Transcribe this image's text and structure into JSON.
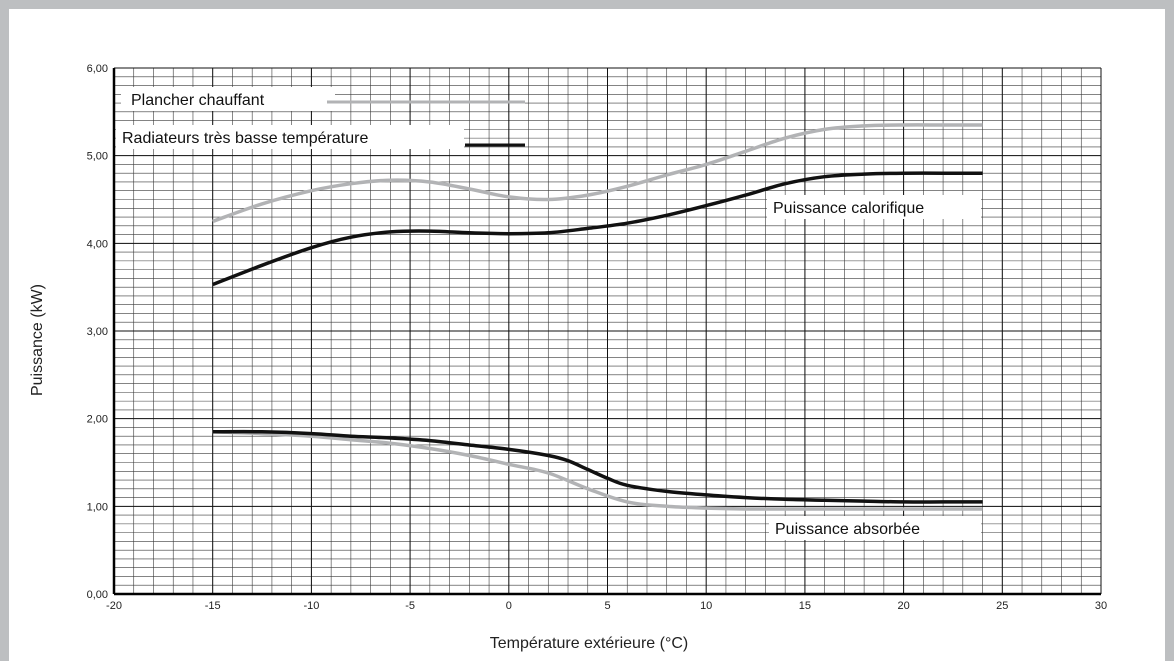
{
  "chart_data": {
    "type": "line",
    "xlabel": "Température extérieure (°C)",
    "ylabel": "Puissance (kW)",
    "xlim": [
      -20,
      30
    ],
    "ylim": [
      0,
      6
    ],
    "x_ticks": [
      -20,
      -15,
      -10,
      -5,
      0,
      5,
      10,
      15,
      20,
      25,
      30
    ],
    "y_ticks": [
      "0,00",
      "1,00",
      "2,00",
      "3,00",
      "4,00",
      "5,00",
      "6,00"
    ],
    "grid": true,
    "legend_placement": "top-left",
    "legend": [
      {
        "label": "Plancher chauffant",
        "color": "#b2b3b5"
      },
      {
        "label": "Radiateurs très basse température",
        "color": "#111111"
      }
    ],
    "annotations": [
      "Puissance calorifique",
      "Puissance absorbée"
    ],
    "series": [
      {
        "name": "Plancher chauffant",
        "group": "Puissance calorifique",
        "color": "#b2b3b5",
        "x": [
          -15,
          -12.5,
          -10,
          -8,
          -6,
          -4,
          -2,
          0,
          2,
          4,
          6,
          8,
          10,
          12,
          14,
          16,
          18,
          20,
          22,
          24
        ],
        "y": [
          4.25,
          4.45,
          4.6,
          4.68,
          4.72,
          4.7,
          4.62,
          4.53,
          4.5,
          4.55,
          4.65,
          4.78,
          4.9,
          5.05,
          5.2,
          5.3,
          5.34,
          5.35,
          5.35,
          5.35
        ]
      },
      {
        "name": "Radiateurs très basse température",
        "group": "Puissance calorifique",
        "color": "#111111",
        "x": [
          -15,
          -12.5,
          -10,
          -8,
          -6,
          -4,
          -2,
          0,
          2,
          4,
          6,
          8,
          10,
          12,
          14,
          16,
          18,
          20,
          22,
          24
        ],
        "y": [
          3.53,
          3.75,
          3.95,
          4.07,
          4.13,
          4.14,
          4.12,
          4.11,
          4.12,
          4.17,
          4.23,
          4.32,
          4.43,
          4.55,
          4.68,
          4.76,
          4.79,
          4.8,
          4.8,
          4.8
        ]
      },
      {
        "name": "Plancher chauffant",
        "group": "Puissance absorbée",
        "color": "#b2b3b5",
        "x": [
          -15,
          -12.5,
          -10,
          -8,
          -6,
          -4,
          -2,
          0,
          2,
          4,
          6,
          8,
          10,
          12,
          14,
          16,
          18,
          20,
          22,
          24
        ],
        "y": [
          1.85,
          1.83,
          1.8,
          1.76,
          1.72,
          1.66,
          1.58,
          1.48,
          1.38,
          1.2,
          1.05,
          1.0,
          0.98,
          0.97,
          0.97,
          0.97,
          0.97,
          0.97,
          0.97,
          0.97
        ]
      },
      {
        "name": "Radiateurs très basse température",
        "group": "Puissance absorbée",
        "color": "#111111",
        "x": [
          -15,
          -12.5,
          -10,
          -8,
          -6,
          -4,
          -2,
          0,
          2,
          3,
          4,
          5,
          6,
          8,
          10,
          12,
          14,
          16,
          18,
          20,
          22,
          24
        ],
        "y": [
          1.85,
          1.85,
          1.83,
          1.8,
          1.78,
          1.75,
          1.7,
          1.65,
          1.58,
          1.52,
          1.42,
          1.32,
          1.24,
          1.17,
          1.13,
          1.1,
          1.08,
          1.07,
          1.06,
          1.05,
          1.05,
          1.05
        ]
      }
    ]
  }
}
